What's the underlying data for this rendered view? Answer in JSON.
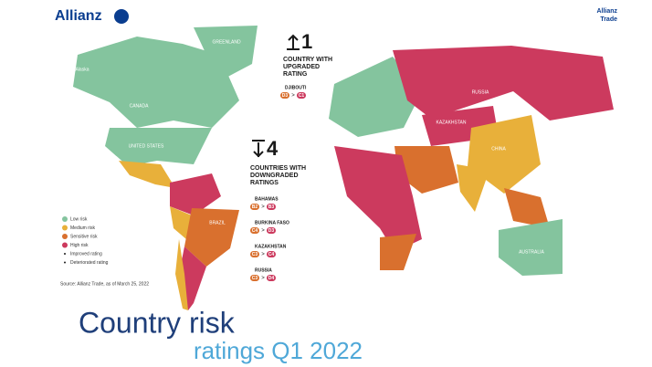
{
  "header": {
    "logo": "Allianz",
    "brand": [
      "Allianz",
      "Trade"
    ]
  },
  "map": {
    "labels": [
      "Alaska",
      "CANADA",
      "GREENLAND",
      "UNITED STATES",
      "BRAZIL",
      "RUSSIA",
      "KAZAKHSTAN",
      "CHINA",
      "AUSTRALIA"
    ]
  },
  "upgraded": {
    "count": "1",
    "heading": [
      "COUNTRY WITH",
      "UPGRADED",
      "RATING"
    ],
    "items": [
      {
        "name": "DJIBOUTI",
        "from": "D3",
        "sep": ">",
        "to": "C1"
      }
    ]
  },
  "downgraded": {
    "count": "4",
    "heading": [
      "COUNTRIES WITH",
      "DOWNGRADED",
      "RATINGS"
    ],
    "items": [
      {
        "name": "BAHAMAS",
        "from": "B2",
        "sep": ">",
        "to": "B3"
      },
      {
        "name": "BURKINA FASO",
        "from": "C4",
        "sep": ">",
        "to": "D3"
      },
      {
        "name": "KAZAKHSTAN",
        "from": "C3",
        "sep": ">",
        "to": "C4"
      },
      {
        "name": "RUSSIA",
        "from": "C3",
        "sep": ">",
        "to": "D4"
      }
    ]
  },
  "legend": [
    {
      "label": "Low risk",
      "color": "#84c49e"
    },
    {
      "label": "Medium risk",
      "color": "#e8b03a"
    },
    {
      "label": "Sensitive risk",
      "color": "#d9702e"
    },
    {
      "label": "High risk",
      "color": "#cc3a5e"
    },
    {
      "label": "Improved rating",
      "color": "#1a1a1a"
    },
    {
      "label": "Deteriorated rating",
      "color": "#1a1a1a"
    }
  ],
  "source": "Source: Allianz Trade, as of March 25, 2022",
  "title": [
    "Country risk",
    "ratings Q1 2022"
  ]
}
